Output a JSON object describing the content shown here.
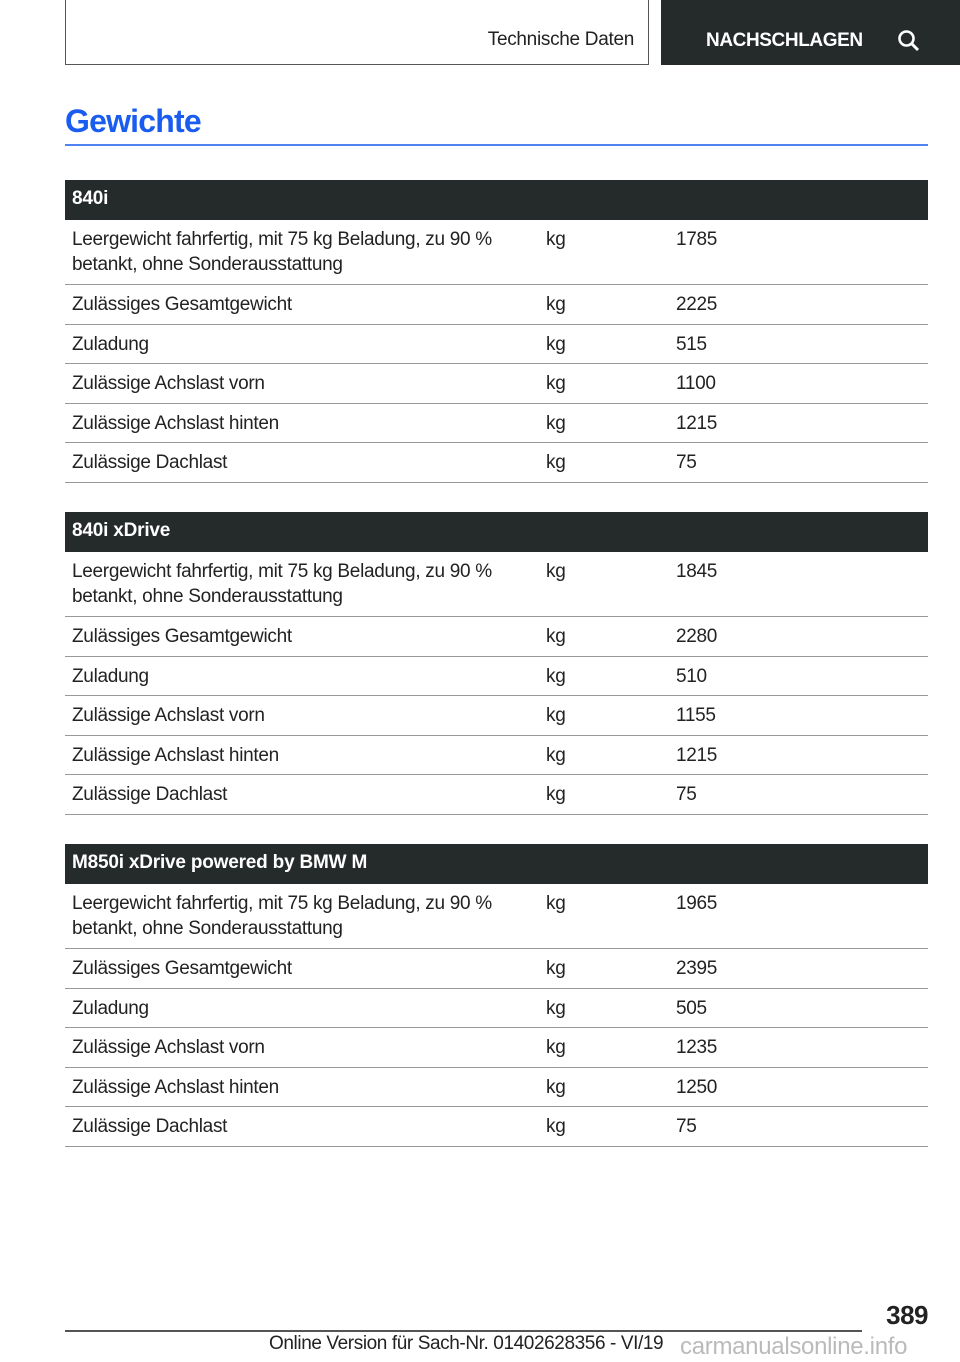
{
  "header": {
    "section": "Technische Daten",
    "nav": "NACHSCHLAGEN",
    "nav_icon": "search-icon"
  },
  "title": "Gewichte",
  "tables": [
    {
      "heading": "840i",
      "rows": [
        {
          "label": "Leergewicht fahrfertig, mit 75 kg Beladung, zu 90 % betankt, ohne Sonderausstattung",
          "unit": "kg",
          "value": "1785"
        },
        {
          "label": "Zulässiges Gesamtgewicht",
          "unit": "kg",
          "value": "2225"
        },
        {
          "label": "Zuladung",
          "unit": "kg",
          "value": "515"
        },
        {
          "label": "Zulässige Achslast vorn",
          "unit": "kg",
          "value": "1100"
        },
        {
          "label": "Zulässige Achslast hinten",
          "unit": "kg",
          "value": "1215"
        },
        {
          "label": "Zulässige Dachlast",
          "unit": "kg",
          "value": "75"
        }
      ]
    },
    {
      "heading": "840i xDrive",
      "rows": [
        {
          "label": "Leergewicht fahrfertig, mit 75 kg Beladung, zu 90 % betankt, ohne Sonderausstattung",
          "unit": "kg",
          "value": "1845"
        },
        {
          "label": "Zulässiges Gesamtgewicht",
          "unit": "kg",
          "value": "2280"
        },
        {
          "label": "Zuladung",
          "unit": "kg",
          "value": "510"
        },
        {
          "label": "Zulässige Achslast vorn",
          "unit": "kg",
          "value": "1155"
        },
        {
          "label": "Zulässige Achslast hinten",
          "unit": "kg",
          "value": "1215"
        },
        {
          "label": "Zulässige Dachlast",
          "unit": "kg",
          "value": "75"
        }
      ]
    },
    {
      "heading": "M850i xDrive powered by BMW M",
      "rows": [
        {
          "label": "Leergewicht fahrfertig, mit 75 kg Beladung, zu 90 % betankt, ohne Sonderausstattung",
          "unit": "kg",
          "value": "1965"
        },
        {
          "label": "Zulässiges Gesamtgewicht",
          "unit": "kg",
          "value": "2395"
        },
        {
          "label": "Zuladung",
          "unit": "kg",
          "value": "505"
        },
        {
          "label": "Zulässige Achslast vorn",
          "unit": "kg",
          "value": "1235"
        },
        {
          "label": "Zulässige Achslast hinten",
          "unit": "kg",
          "value": "1250"
        },
        {
          "label": "Zulässige Dachlast",
          "unit": "kg",
          "value": "75"
        }
      ]
    }
  ],
  "footer": {
    "page": "389",
    "text": "Online Version für Sach-Nr. 01402628356 - VI/19",
    "watermark": "carmanualsonline.info"
  }
}
